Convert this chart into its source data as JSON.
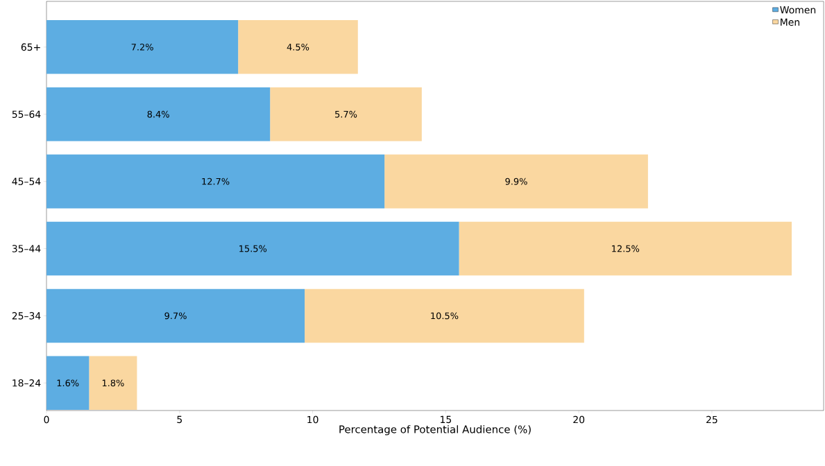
{
  "chart_data": {
    "type": "bar",
    "orientation": "horizontal",
    "stacked": true,
    "xlabel": "Percentage of Potential Audience (%)",
    "categories": [
      "65+",
      "55–64",
      "45–54",
      "35–44",
      "25–34",
      "18–24"
    ],
    "series": [
      {
        "name": "Women",
        "color": "#5dade2",
        "values": [
          7.2,
          8.4,
          12.7,
          15.5,
          9.7,
          1.6
        ],
        "value_labels": [
          "7.2%",
          "8.4%",
          "12.7%",
          "15.5%",
          "9.7%",
          "1.6%"
        ]
      },
      {
        "name": "Men",
        "color": "#fad7a0",
        "values": [
          4.5,
          5.7,
          9.9,
          12.5,
          10.5,
          1.8
        ],
        "value_labels": [
          "4.5%",
          "5.7%",
          "9.9%",
          "12.5%",
          "10.5%",
          "1.8%"
        ]
      }
    ],
    "xlim": [
      0,
      29.2
    ],
    "xticks": [
      0,
      5,
      10,
      15,
      20,
      25
    ],
    "legend": "top right",
    "grid": false
  }
}
